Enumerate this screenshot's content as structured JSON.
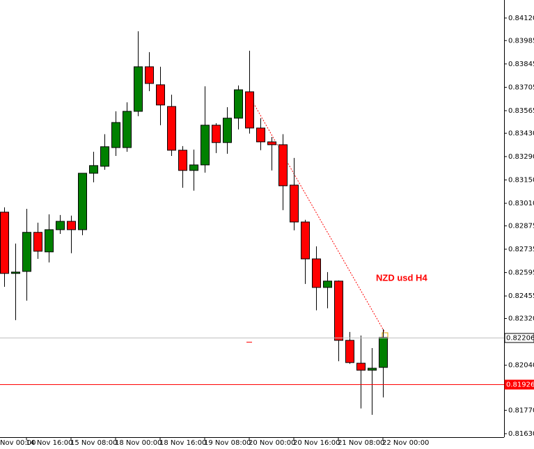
{
  "chart_data": {
    "type": "candlestick",
    "annotation": "NZD usd H4",
    "x_edge_label": "Nov 00:00",
    "categories": [
      null,
      null,
      "14 Nov 16:00",
      null,
      null,
      null,
      "15 Nov 08:00",
      null,
      null,
      null,
      "18 Nov 00:00",
      null,
      null,
      null,
      "18 Nov 16:00",
      null,
      null,
      null,
      "19 Nov 08:00",
      null,
      null,
      null,
      "20 Nov 00:00",
      null,
      null,
      null,
      "20 Nov 16:00",
      null,
      null,
      null,
      "21 Nov 08:00",
      null,
      null,
      null,
      "22 Nov 00:00"
    ],
    "open": [
      0.82957,
      0.8259,
      0.82602,
      0.82836,
      0.82719,
      0.82852,
      0.82902,
      0.82852,
      0.8319,
      0.83232,
      0.83344,
      0.83344,
      0.83561,
      0.83828,
      0.8372,
      0.8359,
      0.83328,
      0.83207,
      0.8324,
      0.83478,
      0.83374,
      0.8352,
      0.83678,
      0.83461,
      0.83378,
      0.83361,
      0.83119,
      0.82898,
      0.82677,
      0.82506,
      0.82544,
      0.82189,
      0.82052,
      0.8201,
      0.82027
    ],
    "high": [
      0.82986,
      0.82769,
      0.82977,
      0.82894,
      0.82944,
      0.8294,
      0.82936,
      0.8319,
      0.83319,
      0.83424,
      0.83561,
      0.83615,
      0.84041,
      0.83916,
      0.83828,
      0.83661,
      0.83353,
      0.83332,
      0.83711,
      0.8349,
      0.83586,
      0.83716,
      0.83924,
      0.8352,
      0.83407,
      0.83424,
      0.83282,
      0.82911,
      0.82752,
      0.82598,
      0.82548,
      0.82239,
      0.82218,
      0.82143,
      0.82256
    ],
    "low": [
      0.8251,
      0.8231,
      0.82427,
      0.82677,
      0.82656,
      0.82827,
      0.82711,
      0.82819,
      0.83136,
      0.83211,
      0.83294,
      0.83319,
      0.83532,
      0.83682,
      0.83478,
      0.83294,
      0.83103,
      0.83086,
      0.83194,
      0.83311,
      0.83307,
      0.83453,
      0.83428,
      0.83328,
      0.83207,
      0.82969,
      0.82848,
      0.82527,
      0.82369,
      0.82381,
      0.82064,
      0.82048,
      0.81781,
      0.81743,
      0.81847
    ],
    "close": [
      0.8259,
      0.82598,
      0.82836,
      0.82723,
      0.82852,
      0.82902,
      0.82852,
      0.8319,
      0.83236,
      0.83349,
      0.83494,
      0.83561,
      0.83828,
      0.83728,
      0.83599,
      0.83328,
      0.83207,
      0.8324,
      0.83478,
      0.83374,
      0.8352,
      0.8369,
      0.83461,
      0.83378,
      0.83361,
      0.83115,
      0.82898,
      0.82677,
      0.82506,
      0.82544,
      0.82189,
      0.82056,
      0.8201,
      0.82022,
      0.82206
    ],
    "bull_color": "#008000",
    "bear_color": "#ff0000",
    "ylim": [
      0.81609,
      0.84228
    ],
    "yticks": [
      {
        "value": 0.8412,
        "label": "0.84120"
      },
      {
        "value": 0.83985,
        "label": "0.83985"
      },
      {
        "value": 0.83845,
        "label": "0.83845"
      },
      {
        "value": 0.83705,
        "label": "0.83705"
      },
      {
        "value": 0.83565,
        "label": "0.83565"
      },
      {
        "value": 0.8343,
        "label": "0.83430"
      },
      {
        "value": 0.8329,
        "label": "0.83290"
      },
      {
        "value": 0.8315,
        "label": "0.83150"
      },
      {
        "value": 0.8301,
        "label": "0.83010"
      },
      {
        "value": 0.82875,
        "label": "0.82875"
      },
      {
        "value": 0.82735,
        "label": "0.82735"
      },
      {
        "value": 0.82595,
        "label": "0.82595"
      },
      {
        "value": 0.82455,
        "label": "0.82455"
      },
      {
        "value": 0.8232,
        "label": "0.82320"
      },
      {
        "value": 0.8204,
        "label": "0.82040"
      },
      {
        "value": 0.8177,
        "label": "0.81770"
      },
      {
        "value": 0.8163,
        "label": "0.81630"
      }
    ],
    "price_lines": [
      {
        "value": 0.82206,
        "color": "#c0c0c0"
      },
      {
        "value": 0.81926,
        "color": "#ff0000"
      }
    ]
  }
}
